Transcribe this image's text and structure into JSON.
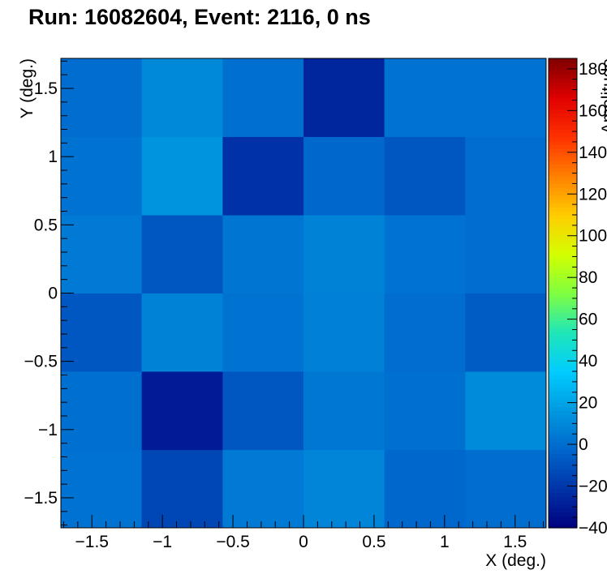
{
  "chart_data": {
    "type": "heatmap",
    "title": "Run: 16082604, Event: 2116, 0 ns",
    "xlabel": "X (deg.)",
    "ylabel": "Y (deg.)",
    "zlabel": "Amplitude",
    "xlim": [
      -1.72,
      1.72
    ],
    "ylim": [
      -1.72,
      1.72
    ],
    "zlim": [
      -40,
      185
    ],
    "x_ticks": [
      -1.5,
      -1,
      -0.5,
      0,
      0.5,
      1,
      1.5
    ],
    "x_tick_labels": [
      "−1.5",
      "−1",
      "−0.5",
      "0",
      "0.5",
      "1",
      "1.5"
    ],
    "y_ticks": [
      -1.5,
      -1,
      -0.5,
      0,
      0.5,
      1,
      1.5
    ],
    "y_tick_labels": [
      "−1.5",
      "−1",
      "−0.5",
      "0",
      "0.5",
      "1",
      "1.5"
    ],
    "z_ticks": [
      -40,
      -20,
      0,
      20,
      40,
      60,
      80,
      100,
      120,
      140,
      160,
      180
    ],
    "z_tick_labels": [
      "−40",
      "−20",
      "0",
      "20",
      "40",
      "60",
      "80",
      "100",
      "120",
      "140",
      "160",
      "180"
    ],
    "x_bin_edges": [
      -1.72,
      -1.147,
      -0.573,
      0,
      0.573,
      1.147,
      1.72
    ],
    "y_bin_edges": [
      -1.72,
      -1.147,
      -0.573,
      0,
      0.573,
      1.147,
      1.72
    ],
    "z_rows_bottom_to_top": [
      [
        2,
        -14,
        5,
        9,
        -2,
        0
      ],
      [
        1,
        -30,
        -8,
        4,
        1,
        11
      ],
      [
        -8,
        8,
        2,
        7,
        0,
        -6
      ],
      [
        5,
        -8,
        3,
        8,
        2,
        0
      ],
      [
        2,
        14,
        -22,
        -2,
        -8,
        0
      ],
      [
        0,
        10,
        1,
        -26,
        2,
        2
      ]
    ],
    "colormap": [
      "#00007f",
      "#0033a8",
      "#0066cc",
      "#0099e0",
      "#00ccff",
      "#1fe6b8",
      "#7fff40",
      "#d4ff00",
      "#ffcc00",
      "#ff8000",
      "#ff3000",
      "#e00000",
      "#7f0000"
    ],
    "grid": false
  }
}
